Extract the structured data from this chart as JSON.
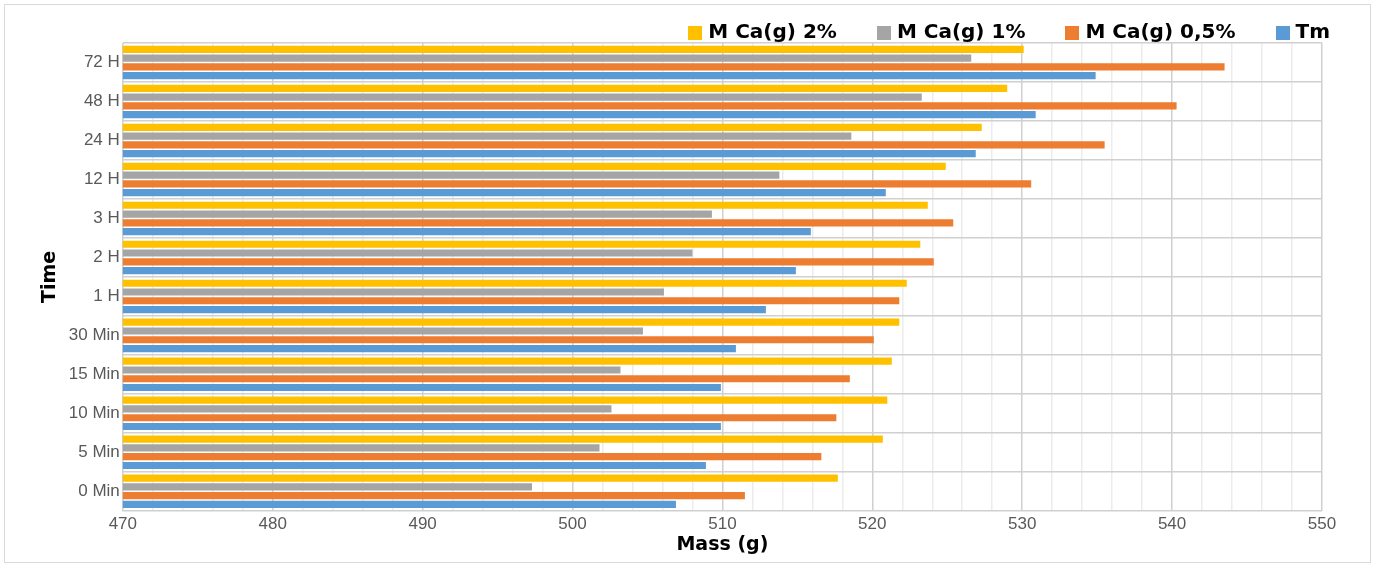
{
  "chart_data": {
    "type": "bar",
    "orientation": "horizontal",
    "xlabel": "Mass (g)",
    "ylabel": "Time",
    "categories": [
      "72 H",
      "48 H",
      "24 H",
      "12 H",
      "3 H",
      "2 H",
      "1 H",
      "30 Min",
      "15 Min",
      "10 Min",
      "5 Min",
      "0 Min"
    ],
    "series": [
      {
        "name": "M Ca(g) 2%",
        "color": "#ffc000",
        "values": [
          530.1,
          529.0,
          527.3,
          524.9,
          523.7,
          523.2,
          522.3,
          521.8,
          521.3,
          521.0,
          520.7,
          517.7
        ]
      },
      {
        "name": "M Ca(g) 1%",
        "color": "#a5a5a5",
        "values": [
          526.6,
          523.3,
          518.6,
          513.8,
          509.3,
          508.0,
          506.1,
          504.7,
          503.2,
          502.6,
          501.8,
          497.3
        ]
      },
      {
        "name": "M Ca(g) 0,5%",
        "color": "#ed7d31",
        "values": [
          543.5,
          540.3,
          535.5,
          530.6,
          525.4,
          524.1,
          521.8,
          520.1,
          518.5,
          517.6,
          516.6,
          511.5
        ]
      },
      {
        "name": "Tm",
        "color": "#5b9bd5",
        "values": [
          534.9,
          530.9,
          526.9,
          520.9,
          515.9,
          514.9,
          512.9,
          510.9,
          509.9,
          509.9,
          508.9,
          506.9
        ]
      }
    ],
    "xlim": [
      470,
      550
    ],
    "xticks": [
      470,
      {
        "value": 472,
        "label": null
      },
      {
        "value": 474,
        "label": null
      },
      {
        "value": 476,
        "label": null
      },
      {
        "value": 478,
        "label": null
      },
      480,
      {
        "value": 482,
        "label": null
      },
      {
        "value": 484,
        "label": null
      },
      {
        "value": 486,
        "label": null
      },
      {
        "value": 488,
        "label": null
      },
      490,
      {
        "value": 492,
        "label": null
      },
      {
        "value": 494,
        "label": null
      },
      {
        "value": 496,
        "label": null
      },
      {
        "value": 498,
        "label": null
      },
      500,
      {
        "value": 502,
        "label": null
      },
      {
        "value": 504,
        "label": null
      },
      {
        "value": 506,
        "label": null
      },
      {
        "value": 508,
        "label": null
      },
      510,
      {
        "value": 512,
        "label": null
      },
      {
        "value": 514,
        "label": null
      },
      {
        "value": 516,
        "label": null
      },
      {
        "value": 518,
        "label": null
      },
      520,
      {
        "value": 522,
        "label": null
      },
      {
        "value": 524,
        "label": null
      },
      {
        "value": 526,
        "label": null
      },
      {
        "value": 528,
        "label": null
      },
      530,
      {
        "value": 532,
        "label": null
      },
      {
        "value": 534,
        "label": null
      },
      {
        "value": 536,
        "label": null
      },
      {
        "value": 538,
        "label": null
      },
      540,
      {
        "value": 542,
        "label": null
      },
      {
        "value": 544,
        "label": null
      },
      {
        "value": 546,
        "label": null
      },
      {
        "value": 548,
        "label": null
      },
      550
    ],
    "grid": true,
    "legend": "top right"
  }
}
